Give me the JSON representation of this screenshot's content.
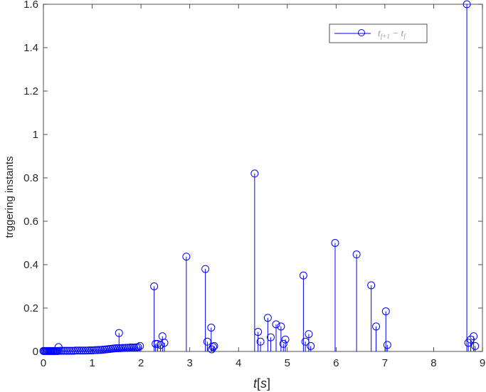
{
  "chart_data": {
    "type": "stem",
    "ylabel": "trggering instants",
    "xlabel_parts": {
      "var": "t",
      "open": "[",
      "unit": "s",
      "close": "]"
    },
    "legend": {
      "position": "top-right",
      "parts": {
        "a": "t",
        "a_sub": "f+1",
        "op": "−",
        "b": "t",
        "b_sub": "f"
      }
    },
    "xlim": [
      0,
      9
    ],
    "ylim": [
      0,
      1.6
    ],
    "xticks": [
      0,
      1,
      2,
      3,
      4,
      5,
      6,
      7,
      8,
      9
    ],
    "yticks": [
      0,
      0.2,
      0.4,
      0.6,
      0.8,
      1,
      1.2,
      1.4,
      1.6
    ],
    "ytick_labels": [
      "0",
      "0.2",
      "0.4",
      "0.6",
      "0.8",
      "1",
      "1.2",
      "1.4",
      "1.6"
    ],
    "grid": false,
    "color": "#0000ff",
    "points": [
      [
        0.0,
        0.002
      ],
      [
        0.02,
        0.002
      ],
      [
        0.04,
        0.002
      ],
      [
        0.06,
        0.002
      ],
      [
        0.08,
        0.002
      ],
      [
        0.1,
        0.002
      ],
      [
        0.12,
        0.002
      ],
      [
        0.14,
        0.002
      ],
      [
        0.16,
        0.002
      ],
      [
        0.18,
        0.002
      ],
      [
        0.2,
        0.002
      ],
      [
        0.22,
        0.002
      ],
      [
        0.24,
        0.002
      ],
      [
        0.26,
        0.002
      ],
      [
        0.28,
        0.002
      ],
      [
        0.3,
        0.002
      ],
      [
        0.31,
        0.02
      ],
      [
        0.34,
        0.003
      ],
      [
        0.38,
        0.003
      ],
      [
        0.42,
        0.003
      ],
      [
        0.46,
        0.003
      ],
      [
        0.5,
        0.003
      ],
      [
        0.54,
        0.003
      ],
      [
        0.58,
        0.003
      ],
      [
        0.62,
        0.003
      ],
      [
        0.66,
        0.004
      ],
      [
        0.7,
        0.004
      ],
      [
        0.74,
        0.004
      ],
      [
        0.78,
        0.004
      ],
      [
        0.82,
        0.004
      ],
      [
        0.86,
        0.004
      ],
      [
        0.9,
        0.004
      ],
      [
        0.94,
        0.005
      ],
      [
        0.98,
        0.005
      ],
      [
        1.02,
        0.005
      ],
      [
        1.06,
        0.006
      ],
      [
        1.1,
        0.006
      ],
      [
        1.14,
        0.007
      ],
      [
        1.18,
        0.007
      ],
      [
        1.22,
        0.008
      ],
      [
        1.26,
        0.009
      ],
      [
        1.3,
        0.01
      ],
      [
        1.34,
        0.011
      ],
      [
        1.38,
        0.012
      ],
      [
        1.42,
        0.013
      ],
      [
        1.46,
        0.014
      ],
      [
        1.5,
        0.015
      ],
      [
        1.54,
        0.015
      ],
      [
        1.55,
        0.085
      ],
      [
        1.58,
        0.015
      ],
      [
        1.62,
        0.016
      ],
      [
        1.66,
        0.016
      ],
      [
        1.7,
        0.017
      ],
      [
        1.74,
        0.017
      ],
      [
        1.78,
        0.018
      ],
      [
        1.82,
        0.018
      ],
      [
        1.86,
        0.018
      ],
      [
        1.9,
        0.019
      ],
      [
        1.94,
        0.02
      ],
      [
        1.98,
        0.025
      ],
      [
        2.27,
        0.3
      ],
      [
        2.3,
        0.035
      ],
      [
        2.34,
        0.035
      ],
      [
        2.4,
        0.03
      ],
      [
        2.44,
        0.07
      ],
      [
        2.48,
        0.04
      ],
      [
        2.93,
        0.437
      ],
      [
        3.32,
        0.38
      ],
      [
        3.36,
        0.045
      ],
      [
        3.44,
        0.11
      ],
      [
        3.45,
        0.01
      ],
      [
        3.48,
        0.02
      ],
      [
        3.5,
        0.025
      ],
      [
        4.33,
        0.82
      ],
      [
        4.4,
        0.09
      ],
      [
        4.45,
        0.045
      ],
      [
        4.6,
        0.155
      ],
      [
        4.66,
        0.065
      ],
      [
        4.77,
        0.125
      ],
      [
        4.87,
        0.115
      ],
      [
        4.92,
        0.035
      ],
      [
        4.96,
        0.055
      ],
      [
        5.33,
        0.35
      ],
      [
        5.37,
        0.045
      ],
      [
        5.44,
        0.08
      ],
      [
        5.48,
        0.025
      ],
      [
        5.98,
        0.5
      ],
      [
        6.42,
        0.447
      ],
      [
        6.72,
        0.305
      ],
      [
        6.82,
        0.115
      ],
      [
        7.02,
        0.185
      ],
      [
        7.05,
        0.03
      ],
      [
        8.68,
        1.6
      ],
      [
        8.71,
        0.04
      ],
      [
        8.76,
        0.055
      ],
      [
        8.82,
        0.07
      ],
      [
        8.85,
        0.025
      ]
    ]
  }
}
